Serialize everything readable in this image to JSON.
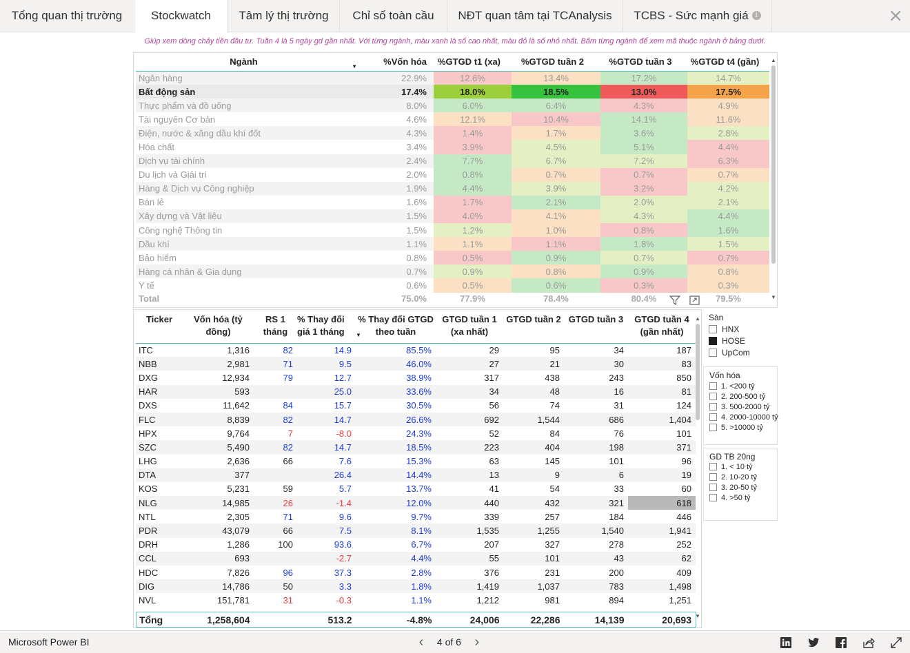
{
  "tabs": [
    {
      "label": "Tổng quan thị trường",
      "info": false
    },
    {
      "label": "Stockwatch",
      "info": false
    },
    {
      "label": "Tâm lý thị trường",
      "info": false
    },
    {
      "label": "Chỉ số toàn cầu",
      "info": false
    },
    {
      "label": "NĐT quan tâm tại TCAnalysis",
      "info": false
    },
    {
      "label": "TCBS - Sức mạnh giá",
      "info": true
    }
  ],
  "active_tab": 1,
  "close_glyph": "×",
  "subtitle": "Giúp xem dòng chảy tiền đầu tư. Tuần 4 là 5 ngày gd gần nhất. Với từng ngành, màu xanh là số cao nhất, màu đỏ là số nhỏ nhất. Bấm từng ngành để xem mã thuộc ngành ở bảng dưới.",
  "sector_table": {
    "headers": [
      "Ngành",
      "%Vốn hóa",
      "%GTGD t1 (xa)",
      "%GTGD tuần 2",
      "%GTGD tuần 3",
      "%GTGD t4 (gần)"
    ],
    "rows": [
      {
        "name": "Ngân hàng",
        "cap": "22.9%",
        "w": [
          "12.6%",
          "13.4%",
          "17.2%",
          "14.7%"
        ],
        "colors": [
          "#f8c8c8",
          "#fbe0c4",
          "#c5e9c5",
          "#e4efc4"
        ],
        "state": "dim"
      },
      {
        "name": "Bất động sản",
        "cap": "17.4%",
        "w": [
          "18.0%",
          "18.5%",
          "13.0%",
          "17.5%"
        ],
        "colors": [
          "#9ccf3c",
          "#36c23e",
          "#ee5a5a",
          "#f5a34b"
        ],
        "state": "hl"
      },
      {
        "name": "Thực phẩm và đồ uống",
        "cap": "8.0%",
        "w": [
          "6.0%",
          "6.4%",
          "4.3%",
          "4.9%"
        ],
        "colors": [
          "#c5e9c5",
          "#c5e9c5",
          "#f8c8c8",
          "#fbe0c4"
        ],
        "state": "dim"
      },
      {
        "name": "Tài nguyên Cơ bản",
        "cap": "4.6%",
        "w": [
          "12.1%",
          "10.4%",
          "14.1%",
          "11.6%"
        ],
        "colors": [
          "#fbe0c4",
          "#f8c8c8",
          "#c5e9c5",
          "#fbe0c4"
        ],
        "state": "dim"
      },
      {
        "name": "Điện, nước & xăng dầu khí đốt",
        "cap": "4.3%",
        "w": [
          "1.4%",
          "1.7%",
          "3.6%",
          "2.8%"
        ],
        "colors": [
          "#f8c8c8",
          "#fbe0c4",
          "#c5e9c5",
          "#e4efc4"
        ],
        "state": "dim"
      },
      {
        "name": "Hóa chất",
        "cap": "3.4%",
        "w": [
          "3.9%",
          "4.5%",
          "5.1%",
          "4.4%"
        ],
        "colors": [
          "#f8c8c8",
          "#e4efc4",
          "#c5e9c5",
          "#f8c8c8"
        ],
        "state": "dim"
      },
      {
        "name": "Dịch vụ tài chính",
        "cap": "2.4%",
        "w": [
          "7.7%",
          "6.7%",
          "7.2%",
          "6.3%"
        ],
        "colors": [
          "#c5e9c5",
          "#e4efc4",
          "#e4efc4",
          "#f8c8c8"
        ],
        "state": "dim"
      },
      {
        "name": "Du lịch và Giải trí",
        "cap": "2.0%",
        "w": [
          "0.8%",
          "0.7%",
          "0.7%",
          "0.7%"
        ],
        "colors": [
          "#c5e9c5",
          "#fbe0c4",
          "#f8c8c8",
          "#fbe0c4"
        ],
        "state": "dim"
      },
      {
        "name": "Hàng & Dịch vụ Công nghiệp",
        "cap": "1.9%",
        "w": [
          "4.4%",
          "3.9%",
          "3.2%",
          "4.2%"
        ],
        "colors": [
          "#c5e9c5",
          "#e4efc4",
          "#f8c8c8",
          "#e4efc4"
        ],
        "state": "dim"
      },
      {
        "name": "Bán lẻ",
        "cap": "1.6%",
        "w": [
          "1.7%",
          "2.1%",
          "2.0%",
          "2.1%"
        ],
        "colors": [
          "#f8c8c8",
          "#c5e9c5",
          "#e4efc4",
          "#e4efc4"
        ],
        "state": "dim"
      },
      {
        "name": "Xây dựng và Vật liệu",
        "cap": "1.5%",
        "w": [
          "4.0%",
          "4.1%",
          "4.3%",
          "4.4%"
        ],
        "colors": [
          "#f8c8c8",
          "#fbe0c4",
          "#e4efc4",
          "#c5e9c5"
        ],
        "state": "dim"
      },
      {
        "name": "Công nghệ Thông tin",
        "cap": "1.5%",
        "w": [
          "1.2%",
          "1.0%",
          "0.8%",
          "1.6%"
        ],
        "colors": [
          "#e4efc4",
          "#fbe0c4",
          "#f8c8c8",
          "#c5e9c5"
        ],
        "state": "dim"
      },
      {
        "name": "Dầu khí",
        "cap": "1.1%",
        "w": [
          "1.1%",
          "1.1%",
          "1.8%",
          "1.5%"
        ],
        "colors": [
          "#fbe0c4",
          "#f8c8c8",
          "#c5e9c5",
          "#e4efc4"
        ],
        "state": "dim"
      },
      {
        "name": "Bảo hiểm",
        "cap": "0.8%",
        "w": [
          "0.5%",
          "0.9%",
          "0.7%",
          "0.7%"
        ],
        "colors": [
          "#f8c8c8",
          "#c5e9c5",
          "#e4efc4",
          "#f8c8c8"
        ],
        "state": "dim"
      },
      {
        "name": "Hàng cá nhân & Gia dụng",
        "cap": "0.7%",
        "w": [
          "0.9%",
          "0.8%",
          "0.9%",
          "0.8%"
        ],
        "colors": [
          "#e4efc4",
          "#fbe0c4",
          "#c5e9c5",
          "#fbe0c4"
        ],
        "state": "dim"
      },
      {
        "name": "Y tế",
        "cap": "0.6%",
        "w": [
          "0.5%",
          "0.6%",
          "0.3%",
          "0.3%"
        ],
        "colors": [
          "#fbe0c4",
          "#c5e9c5",
          "#f8c8c8",
          "#fbe0c4"
        ],
        "state": "dim"
      }
    ],
    "total": {
      "label": "Total",
      "cap": "75.0%",
      "w": [
        "77.9%",
        "78.4%",
        "80.4%",
        "79.5%"
      ]
    }
  },
  "ticker_table": {
    "headers": [
      "Ticker",
      "Vốn hóa (tỷ đồng)",
      "RS 1 tháng",
      "% Thay đổi giá 1 tháng",
      "% Thay đổi GTGD theo tuần",
      "GTGD tuần 1 (xa nhất)",
      "GTGD tuần 2",
      "GTGD tuần 3",
      "GTGD tuần 4 (gần nhất)"
    ],
    "rows": [
      {
        "t": "ITC",
        "cap": "1,316",
        "rs": "82",
        "rsc": "blue",
        "p": "14.9",
        "pc": "blue",
        "g": "85.5%",
        "w1": "29",
        "w2": "95",
        "w3": "34",
        "w4": "187"
      },
      {
        "t": "NBB",
        "cap": "2,981",
        "rs": "71",
        "rsc": "blue",
        "p": "9.5",
        "pc": "blue",
        "g": "46.0%",
        "w1": "27",
        "w2": "21",
        "w3": "30",
        "w4": "83"
      },
      {
        "t": "DXG",
        "cap": "12,934",
        "rs": "79",
        "rsc": "blue",
        "p": "12.7",
        "pc": "blue",
        "g": "38.9%",
        "w1": "317",
        "w2": "438",
        "w3": "243",
        "w4": "850"
      },
      {
        "t": "HAR",
        "cap": "593",
        "rs": "",
        "rsc": "",
        "p": "25.0",
        "pc": "blue",
        "g": "33.6%",
        "w1": "34",
        "w2": "48",
        "w3": "16",
        "w4": "81"
      },
      {
        "t": "DXS",
        "cap": "11,642",
        "rs": "84",
        "rsc": "blue",
        "p": "15.7",
        "pc": "blue",
        "g": "30.5%",
        "w1": "56",
        "w2": "74",
        "w3": "31",
        "w4": "124"
      },
      {
        "t": "FLC",
        "cap": "8,839",
        "rs": "82",
        "rsc": "blue",
        "p": "14.7",
        "pc": "blue",
        "g": "26.6%",
        "w1": "692",
        "w2": "1,544",
        "w3": "686",
        "w4": "1,404"
      },
      {
        "t": "HPX",
        "cap": "9,764",
        "rs": "7",
        "rsc": "red",
        "p": "-8.0",
        "pc": "red",
        "g": "24.3%",
        "w1": "52",
        "w2": "84",
        "w3": "76",
        "w4": "101"
      },
      {
        "t": "SZC",
        "cap": "5,490",
        "rs": "82",
        "rsc": "blue",
        "p": "14.7",
        "pc": "blue",
        "g": "18.5%",
        "w1": "223",
        "w2": "404",
        "w3": "198",
        "w4": "371"
      },
      {
        "t": "LHG",
        "cap": "2,636",
        "rs": "66",
        "rsc": "",
        "p": "7.6",
        "pc": "blue",
        "g": "15.3%",
        "w1": "63",
        "w2": "145",
        "w3": "101",
        "w4": "96"
      },
      {
        "t": "DTA",
        "cap": "377",
        "rs": "",
        "rsc": "",
        "p": "26.4",
        "pc": "blue",
        "g": "14.4%",
        "w1": "13",
        "w2": "9",
        "w3": "6",
        "w4": "19"
      },
      {
        "t": "KOS",
        "cap": "5,231",
        "rs": "59",
        "rsc": "",
        "p": "5.7",
        "pc": "blue",
        "g": "13.7%",
        "w1": "41",
        "w2": "54",
        "w3": "33",
        "w4": "60"
      },
      {
        "t": "NLG",
        "cap": "14,985",
        "rs": "26",
        "rsc": "red",
        "p": "-1.4",
        "pc": "red",
        "g": "12.0%",
        "w1": "440",
        "w2": "432",
        "w3": "321",
        "w4": "618",
        "hl4": true
      },
      {
        "t": "NTL",
        "cap": "2,305",
        "rs": "71",
        "rsc": "blue",
        "p": "9.6",
        "pc": "blue",
        "g": "9.7%",
        "w1": "339",
        "w2": "257",
        "w3": "184",
        "w4": "446"
      },
      {
        "t": "PDR",
        "cap": "43,079",
        "rs": "66",
        "rsc": "",
        "p": "7.5",
        "pc": "blue",
        "g": "8.1%",
        "w1": "1,535",
        "w2": "1,255",
        "w3": "1,540",
        "w4": "1,941"
      },
      {
        "t": "DRH",
        "cap": "1,286",
        "rs": "100",
        "rsc": "",
        "p": "93.6",
        "pc": "blue",
        "g": "6.7%",
        "w1": "207",
        "w2": "327",
        "w3": "278",
        "w4": "252"
      },
      {
        "t": "CCL",
        "cap": "693",
        "rs": "",
        "rsc": "",
        "p": "-2.7",
        "pc": "red",
        "g": "4.4%",
        "w1": "55",
        "w2": "101",
        "w3": "43",
        "w4": "62"
      },
      {
        "t": "HDC",
        "cap": "7,826",
        "rs": "96",
        "rsc": "blue",
        "p": "37.3",
        "pc": "blue",
        "g": "2.8%",
        "w1": "376",
        "w2": "231",
        "w3": "200",
        "w4": "409"
      },
      {
        "t": "DIG",
        "cap": "14,786",
        "rs": "50",
        "rsc": "",
        "p": "3.3",
        "pc": "blue",
        "g": "1.8%",
        "w1": "1,419",
        "w2": "1,037",
        "w3": "783",
        "w4": "1,498"
      },
      {
        "t": "NVL",
        "cap": "151,781",
        "rs": "31",
        "rsc": "red",
        "p": "-0.3",
        "pc": "red",
        "g": "1.1%",
        "w1": "1,212",
        "w2": "981",
        "w3": "894",
        "w4": "1,251"
      }
    ],
    "total": {
      "t": "Tổng",
      "cap": "1,258,604",
      "rs": "",
      "p": "513.2",
      "g": "-4.8%",
      "w1": "24,006",
      "w2": "22,286",
      "w3": "14,139",
      "w4": "20,693"
    }
  },
  "slicers": {
    "san": {
      "title": "Sàn",
      "items": [
        {
          "label": "HNX",
          "on": false
        },
        {
          "label": "HOSE",
          "on": true
        },
        {
          "label": "UpCom",
          "on": false
        }
      ]
    },
    "von_hoa": {
      "title": "Vốn hóa",
      "items": [
        {
          "label": "1. <200 tỷ",
          "on": false
        },
        {
          "label": "2. 200-500 tỷ",
          "on": false
        },
        {
          "label": "3. 500-2000 tỷ",
          "on": false
        },
        {
          "label": "4. 2000-10000 tỷ",
          "on": false
        },
        {
          "label": "5. >10000 tỷ",
          "on": false
        }
      ]
    },
    "gd_tb": {
      "title": "GD TB 20ng",
      "items": [
        {
          "label": "1. < 10 tỷ",
          "on": false
        },
        {
          "label": "2. 10-20 tỷ",
          "on": false
        },
        {
          "label": "3. 20-50 tỷ",
          "on": false
        },
        {
          "label": "4. >50 tỷ",
          "on": false
        }
      ]
    }
  },
  "footer": {
    "brand": "Microsoft Power BI",
    "page": "4 of 6"
  },
  "colors": {
    "accent_border": "#5fbfbf",
    "blue": "#1c3bd8",
    "red": "#e8393d",
    "subtitle": "#b4449c"
  }
}
